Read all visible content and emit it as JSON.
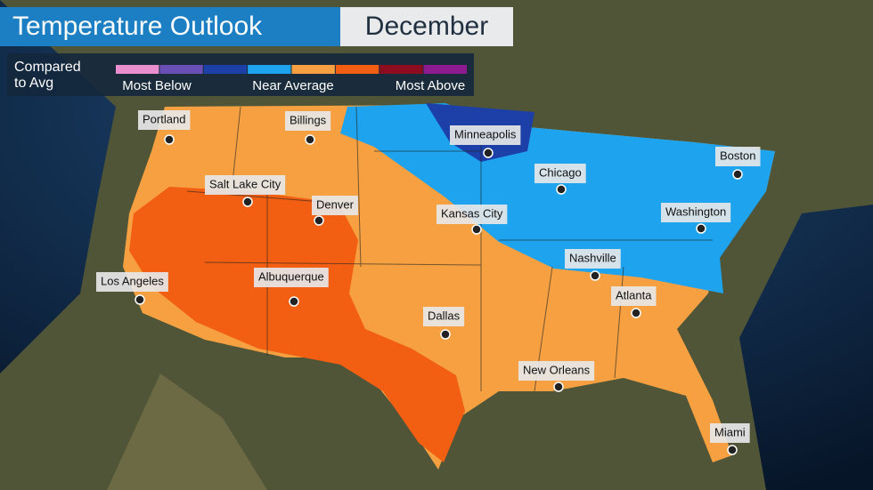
{
  "header": {
    "title": "Temperature Outlook",
    "month": "December"
  },
  "legend": {
    "heading": [
      "Compared",
      "to Avg"
    ],
    "swatches": [
      "#e98fd0",
      "#6a4fb6",
      "#1d3fa8",
      "#1ea3ee",
      "#f6a041",
      "#f25f12",
      "#8e0c1f",
      "#8d1a8f"
    ],
    "labels": [
      "Most Below",
      "Near Average",
      "Most Above"
    ]
  },
  "cities": [
    "Portland",
    "Billings",
    "Minneapolis",
    "Boston",
    "Chicago",
    "Salt Lake City",
    "Denver",
    "Kansas City",
    "Washington",
    "Nashville",
    "Los Angeles",
    "Albuquerque",
    "Atlanta",
    "Dallas",
    "New Orleans",
    "Miami"
  ]
}
